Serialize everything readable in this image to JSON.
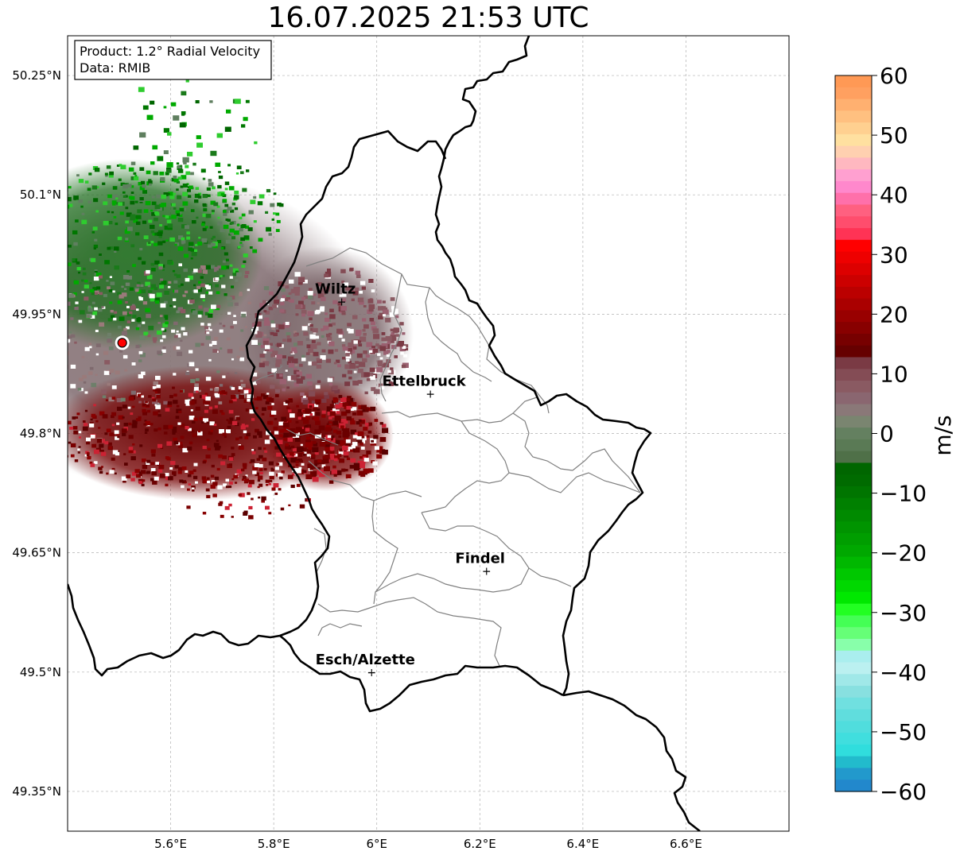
{
  "title": "16.07.2025 21:53 UTC",
  "info_box": {
    "line1": "Product: 1.2° Radial Velocity",
    "line2": "Data: RMIB"
  },
  "map": {
    "lon_range": [
      5.4,
      6.8
    ],
    "lat_range": [
      49.3,
      50.3
    ],
    "x_ticks": [
      {
        "value": 5.6,
        "label": "5.6°E"
      },
      {
        "value": 5.8,
        "label": "5.8°E"
      },
      {
        "value": 6.0,
        "label": "6°E"
      },
      {
        "value": 6.2,
        "label": "6.2°E"
      },
      {
        "value": 6.4,
        "label": "6.4°E"
      },
      {
        "value": 6.6,
        "label": "6.6°E"
      }
    ],
    "y_ticks": [
      {
        "value": 50.25,
        "label": "50.25°N"
      },
      {
        "value": 50.1,
        "label": "50.1°N"
      },
      {
        "value": 49.95,
        "label": "49.95°N"
      },
      {
        "value": 49.8,
        "label": "49.8°N"
      },
      {
        "value": 49.65,
        "label": "49.65°N"
      },
      {
        "value": 49.5,
        "label": "49.5°N"
      },
      {
        "value": 49.35,
        "label": "49.35°N"
      }
    ],
    "radar_site": {
      "lon": 5.506,
      "lat": 49.914
    },
    "cities": [
      {
        "name": "Wiltz",
        "lon": 5.932,
        "lat": 49.966
      },
      {
        "name": "Ettelbruck",
        "lon": 6.104,
        "lat": 49.85
      },
      {
        "name": "Findel",
        "lon": 6.213,
        "lat": 49.627
      },
      {
        "name": "Esch/Alzette",
        "lon": 5.99,
        "lat": 49.5
      }
    ]
  },
  "colorbar": {
    "label": "m/s",
    "range": [
      -60,
      60
    ],
    "ticks": [
      {
        "value": 60,
        "label": "60"
      },
      {
        "value": 50,
        "label": "50"
      },
      {
        "value": 40,
        "label": "40"
      },
      {
        "value": 30,
        "label": "30"
      },
      {
        "value": 20,
        "label": "20"
      },
      {
        "value": 10,
        "label": "10"
      },
      {
        "value": 0,
        "label": "0"
      },
      {
        "value": -10,
        "label": "−10"
      },
      {
        "value": -20,
        "label": "−20"
      },
      {
        "value": -30,
        "label": "−30"
      },
      {
        "value": -40,
        "label": "−40"
      },
      {
        "value": -50,
        "label": "−50"
      },
      {
        "value": -60,
        "label": "−60"
      }
    ],
    "colors_top_to_bottom": [
      "#ff9955",
      "#ffa060",
      "#ffb070",
      "#ffc080",
      "#ffd090",
      "#ffe0a0",
      "#ffd0b0",
      "#ffb8c0",
      "#ffa0d0",
      "#ff88cc",
      "#ff70aa",
      "#ff6080",
      "#ff4d6d",
      "#ff3355",
      "#ff0000",
      "#ee0000",
      "#dd0000",
      "#cc0000",
      "#bb0000",
      "#aa0000",
      "#990000",
      "#880000",
      "#770000",
      "#660000",
      "#7a3a44",
      "#844c55",
      "#8a5a62",
      "#8a6670",
      "#8a7878",
      "#7a8570",
      "#648060",
      "#5a7a55",
      "#4f7048",
      "#006600",
      "#006b00",
      "#007500",
      "#008000",
      "#008a00",
      "#009400",
      "#009e00",
      "#00a800",
      "#00b800",
      "#00c800",
      "#00d800",
      "#00e800",
      "#22ff22",
      "#44ff55",
      "#66ff77",
      "#88ffaa",
      "#aaeeee",
      "#bbf0f0",
      "#a0e8e8",
      "#88e0e0",
      "#70e0e0",
      "#60dddd",
      "#50dddd",
      "#40dede",
      "#30dddd",
      "#22bbcc",
      "#2299cc",
      "#2288cc"
    ]
  },
  "colors": {
    "border": "#000000",
    "admin": "#808080",
    "grid": "#b0b0b0",
    "radar_site": "#ff0000"
  }
}
